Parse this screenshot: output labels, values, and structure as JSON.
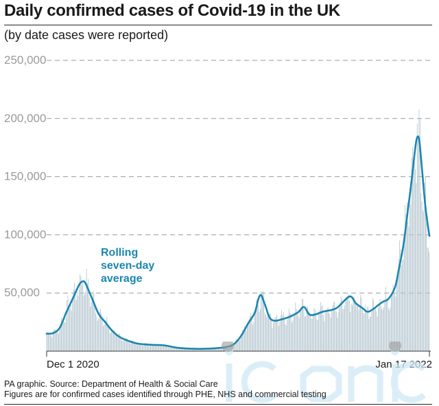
{
  "title": "Daily confirmed cases of Covid-19 in the UK",
  "subtitle": "(by date cases were reported)",
  "annotation": [
    "Rolling",
    "seven-day",
    "average"
  ],
  "source_lines": [
    "PA graphic. Source: Department of Health & Social Care",
    "Figures are for confirmed cases identified through PHE, NHS and commercial testing"
  ],
  "colors": {
    "bars": "#b5c6cf",
    "line": "#1a86b0",
    "grid": "#9a9a9a"
  },
  "chart_data": {
    "type": "bar",
    "title": "Daily confirmed cases of Covid-19 in the UK",
    "subtitle": "(by date cases were reported)",
    "x_tick_labels": [
      {
        "date": "2020-12-01",
        "label": "Dec 1 2020"
      },
      {
        "date": "2022-01-17",
        "label": "Jan 17 2022"
      }
    ],
    "x_range": [
      "2020-12-01",
      "2022-01-17"
    ],
    "ylim": [
      0,
      250000
    ],
    "y_ticks": [
      50000,
      100000,
      150000,
      200000,
      250000
    ],
    "y_tick_labels": [
      "50,000",
      "100,000",
      "150,000",
      "200,000",
      "250,000"
    ],
    "grid": "horizontal dashed",
    "series": [
      {
        "name": "Rolling seven-day average",
        "type": "line",
        "points": [
          [
            "2020-12-01",
            15000
          ],
          [
            "2020-12-08",
            15500
          ],
          [
            "2020-12-15",
            20000
          ],
          [
            "2020-12-22",
            33000
          ],
          [
            "2020-12-29",
            45000
          ],
          [
            "2021-01-05",
            57000
          ],
          [
            "2021-01-09",
            60000
          ],
          [
            "2021-01-12",
            58000
          ],
          [
            "2021-01-19",
            45000
          ],
          [
            "2021-01-26",
            32000
          ],
          [
            "2021-02-02",
            25000
          ],
          [
            "2021-02-09",
            18000
          ],
          [
            "2021-02-16",
            13000
          ],
          [
            "2021-02-23",
            10000
          ],
          [
            "2021-03-09",
            6500
          ],
          [
            "2021-03-23",
            5500
          ],
          [
            "2021-04-06",
            5000
          ],
          [
            "2021-04-20",
            3000
          ],
          [
            "2021-05-04",
            2200
          ],
          [
            "2021-05-18",
            2000
          ],
          [
            "2021-06-01",
            2500
          ],
          [
            "2021-06-15",
            4000
          ],
          [
            "2021-06-22",
            7000
          ],
          [
            "2021-06-29",
            14000
          ],
          [
            "2021-07-06",
            24000
          ],
          [
            "2021-07-13",
            33000
          ],
          [
            "2021-07-17",
            45000
          ],
          [
            "2021-07-20",
            48000
          ],
          [
            "2021-07-24",
            40000
          ],
          [
            "2021-07-31",
            27000
          ],
          [
            "2021-08-14",
            28000
          ],
          [
            "2021-08-28",
            33000
          ],
          [
            "2021-09-04",
            38000
          ],
          [
            "2021-09-11",
            31000
          ],
          [
            "2021-09-25",
            34000
          ],
          [
            "2021-10-09",
            37000
          ],
          [
            "2021-10-23",
            47000
          ],
          [
            "2021-10-30",
            41000
          ],
          [
            "2021-11-06",
            37000
          ],
          [
            "2021-11-13",
            34000
          ],
          [
            "2021-11-27",
            42000
          ],
          [
            "2021-12-04",
            45000
          ],
          [
            "2021-12-11",
            55000
          ],
          [
            "2021-12-15",
            70000
          ],
          [
            "2021-12-20",
            91000
          ],
          [
            "2021-12-25",
            122000
          ],
          [
            "2021-12-29",
            148000
          ],
          [
            "2022-01-02",
            176000
          ],
          [
            "2022-01-04",
            184000
          ],
          [
            "2022-01-06",
            182000
          ],
          [
            "2022-01-08",
            166000
          ],
          [
            "2022-01-10",
            148000
          ],
          [
            "2022-01-13",
            122000
          ],
          [
            "2022-01-17",
            99000
          ]
        ]
      }
    ]
  }
}
